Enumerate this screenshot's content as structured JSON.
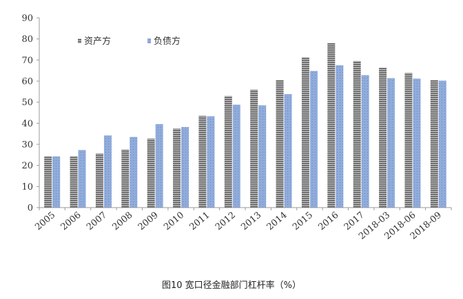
{
  "caption": "图10 宽口径金融部门杠杆率（%）",
  "chart_data": {
    "type": "bar",
    "title": "",
    "xlabel": "",
    "ylabel": "",
    "ylim": [
      0,
      90
    ],
    "yticks": [
      0,
      10,
      20,
      30,
      40,
      50,
      60,
      70,
      80,
      90
    ],
    "grid": false,
    "legend_position": "top-left",
    "categories": [
      "2005",
      "2006",
      "2007",
      "2008",
      "2009",
      "2010",
      "2011",
      "2012",
      "2013",
      "2014",
      "2015",
      "2016",
      "2017",
      "2018-03",
      "2018-06",
      "2018-09"
    ],
    "series": [
      {
        "name": "资产方",
        "color": "#7a7a7a",
        "values": [
          24.3,
          24.3,
          25.7,
          27.6,
          32.7,
          37.5,
          43.5,
          53.0,
          56.0,
          60.5,
          71.2,
          78.0,
          69.6,
          66.4,
          63.9,
          60.5
        ]
      },
      {
        "name": "负债方",
        "color": "#8ea9db",
        "values": [
          24.3,
          27.3,
          34.2,
          33.5,
          39.6,
          38.2,
          43.3,
          48.8,
          48.5,
          53.8,
          64.8,
          67.5,
          62.8,
          61.4,
          61.2,
          60.2
        ]
      }
    ]
  }
}
